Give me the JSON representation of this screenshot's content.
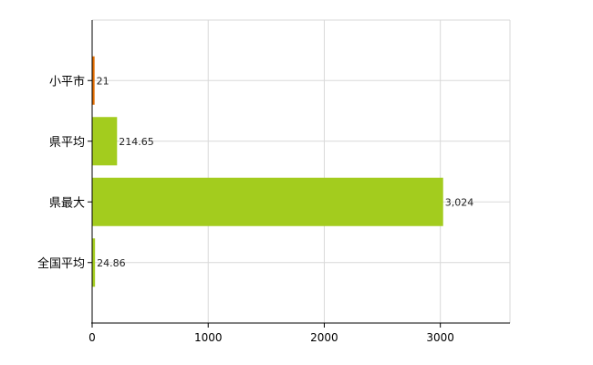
{
  "chart_data": {
    "type": "bar",
    "orientation": "horizontal",
    "categories": [
      "小平市",
      "県平均",
      "県最大",
      "全国平均"
    ],
    "values": [
      21,
      214.65,
      3024,
      24.86
    ],
    "value_labels": [
      "21",
      "214.65",
      "3,024",
      "24.86"
    ],
    "bar_colors": [
      "#e06c00",
      "#a3cc1e",
      "#a3cc1e",
      "#a3cc1e"
    ],
    "xlim": [
      0,
      3600
    ],
    "xticks": [
      0,
      1000,
      2000,
      3000
    ],
    "xtick_labels": [
      "0",
      "1000",
      "2000",
      "3000"
    ],
    "grid": true
  }
}
